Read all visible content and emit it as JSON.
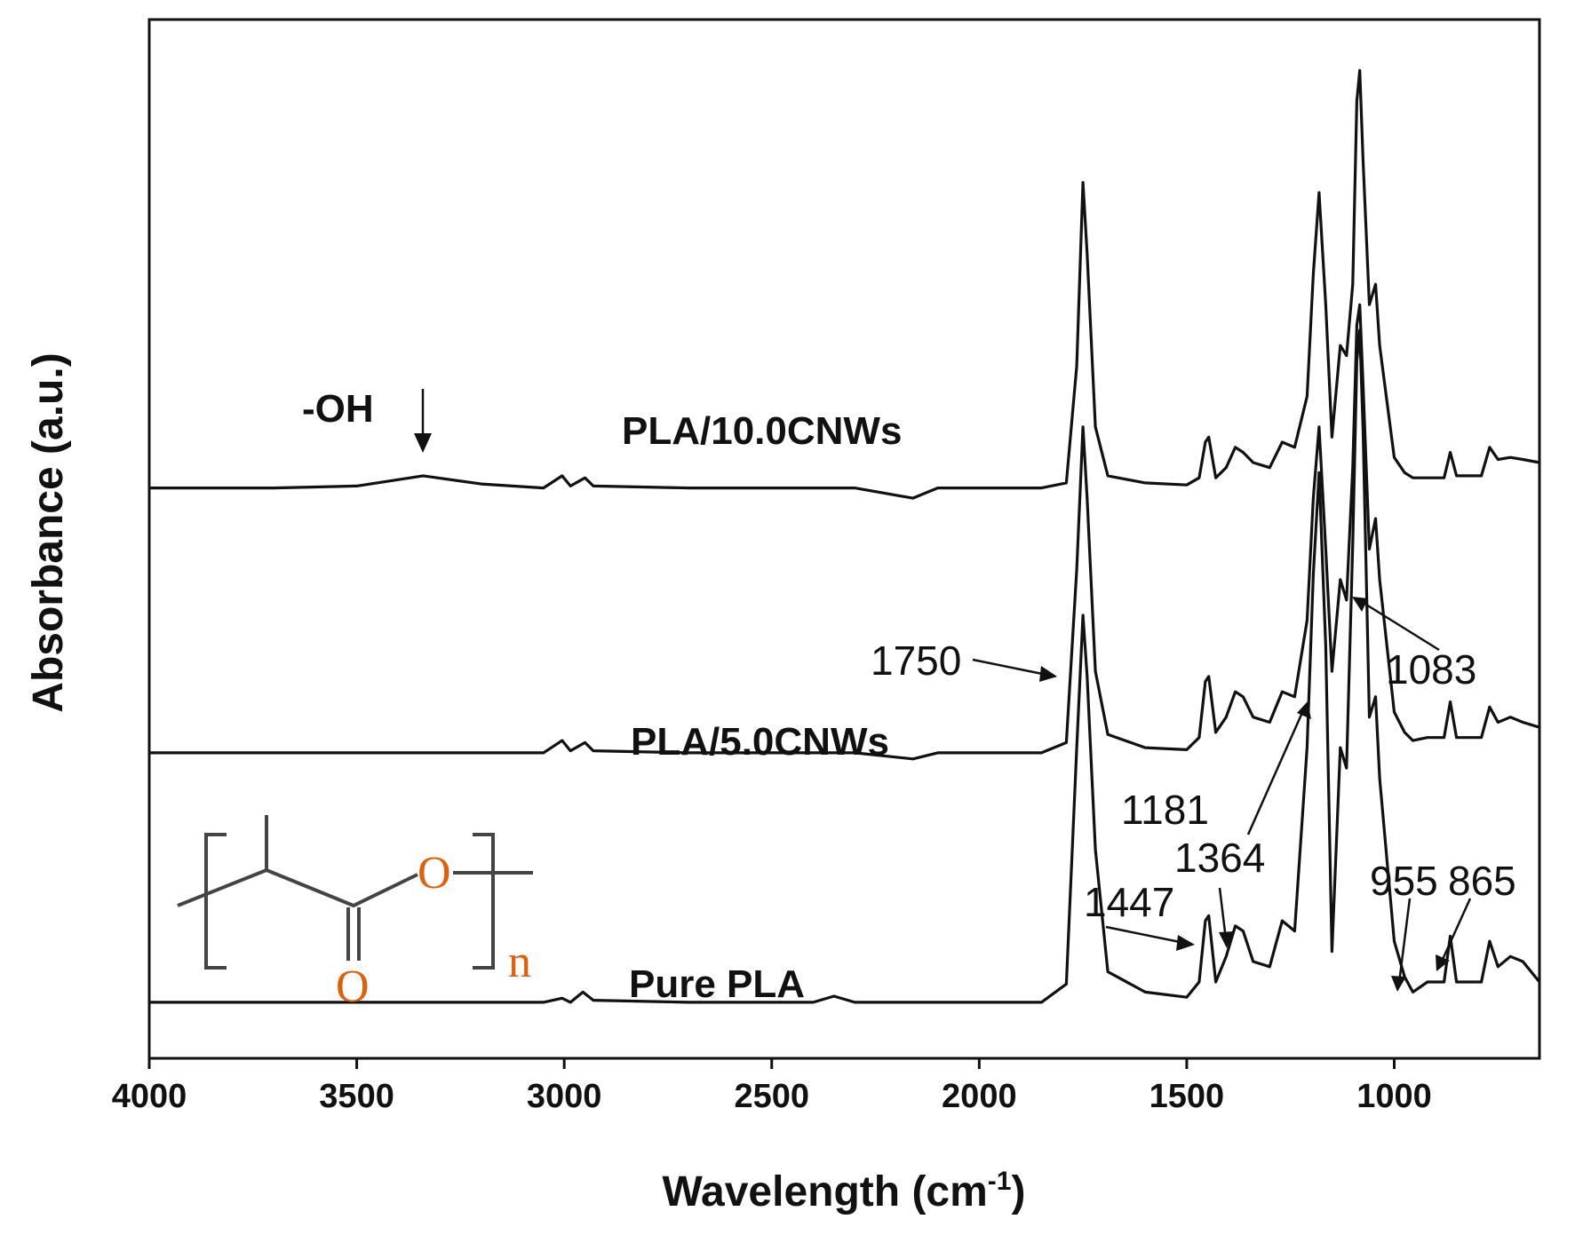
{
  "chart_data": {
    "type": "line",
    "xlabel": "Wavelength (cm",
    "xlabel_superscript": "-1",
    "xlabel_suffix": ")",
    "ylabel": "Absorbance (a.u.)",
    "xlim": [
      4000,
      650
    ],
    "x_reversed": true,
    "x_ticks": [
      4000,
      3500,
      3000,
      2500,
      2000,
      1500,
      1000
    ],
    "y_ticks_shown": false,
    "grid": false,
    "legend": "none",
    "series_colors": "#111111",
    "series": [
      {
        "name": "PLA/10.0CNWs",
        "baseline": 0.26,
        "points": [
          [
            4000,
            0.0
          ],
          [
            3700,
            0.0
          ],
          [
            3500,
            0.002
          ],
          [
            3340,
            0.012
          ],
          [
            3200,
            0.004
          ],
          [
            3050,
            0.0
          ],
          [
            3005,
            0.012
          ],
          [
            2985,
            0.002
          ],
          [
            2950,
            0.01
          ],
          [
            2930,
            0.002
          ],
          [
            2700,
            0.0
          ],
          [
            2300,
            0.0
          ],
          [
            2160,
            -0.01
          ],
          [
            2100,
            0.0
          ],
          [
            1850,
            0.0
          ],
          [
            1790,
            0.005
          ],
          [
            1765,
            0.12
          ],
          [
            1750,
            0.3
          ],
          [
            1740,
            0.23
          ],
          [
            1720,
            0.06
          ],
          [
            1690,
            0.012
          ],
          [
            1600,
            0.005
          ],
          [
            1500,
            0.003
          ],
          [
            1470,
            0.01
          ],
          [
            1455,
            0.045
          ],
          [
            1447,
            0.05
          ],
          [
            1430,
            0.01
          ],
          [
            1405,
            0.02
          ],
          [
            1383,
            0.04
          ],
          [
            1364,
            0.035
          ],
          [
            1340,
            0.025
          ],
          [
            1300,
            0.02
          ],
          [
            1270,
            0.045
          ],
          [
            1240,
            0.04
          ],
          [
            1210,
            0.09
          ],
          [
            1195,
            0.21
          ],
          [
            1181,
            0.29
          ],
          [
            1165,
            0.18
          ],
          [
            1150,
            0.05
          ],
          [
            1130,
            0.14
          ],
          [
            1115,
            0.13
          ],
          [
            1100,
            0.2
          ],
          [
            1090,
            0.38
          ],
          [
            1083,
            0.41
          ],
          [
            1075,
            0.32
          ],
          [
            1060,
            0.18
          ],
          [
            1045,
            0.2
          ],
          [
            1035,
            0.14
          ],
          [
            1000,
            0.03
          ],
          [
            975,
            0.015
          ],
          [
            955,
            0.01
          ],
          [
            920,
            0.01
          ],
          [
            880,
            0.01
          ],
          [
            865,
            0.035
          ],
          [
            850,
            0.012
          ],
          [
            810,
            0.012
          ],
          [
            790,
            0.012
          ],
          [
            770,
            0.04
          ],
          [
            750,
            0.028
          ],
          [
            720,
            0.03
          ],
          [
            690,
            0.028
          ],
          [
            650,
            0.025
          ]
        ]
      },
      {
        "name": "PLA/5.0CNWs",
        "baseline": 0.0,
        "points": [
          [
            4000,
            0.0
          ],
          [
            3700,
            0.0
          ],
          [
            3500,
            0.0
          ],
          [
            3200,
            0.0
          ],
          [
            3050,
            0.0
          ],
          [
            3005,
            0.012
          ],
          [
            2985,
            0.002
          ],
          [
            2950,
            0.01
          ],
          [
            2930,
            0.002
          ],
          [
            2700,
            0.0
          ],
          [
            2300,
            0.0
          ],
          [
            2160,
            -0.006
          ],
          [
            2100,
            0.0
          ],
          [
            1850,
            0.0
          ],
          [
            1790,
            0.01
          ],
          [
            1765,
            0.18
          ],
          [
            1750,
            0.32
          ],
          [
            1740,
            0.25
          ],
          [
            1720,
            0.08
          ],
          [
            1690,
            0.018
          ],
          [
            1600,
            0.005
          ],
          [
            1500,
            0.003
          ],
          [
            1470,
            0.015
          ],
          [
            1455,
            0.07
          ],
          [
            1447,
            0.075
          ],
          [
            1430,
            0.02
          ],
          [
            1405,
            0.035
          ],
          [
            1383,
            0.06
          ],
          [
            1364,
            0.055
          ],
          [
            1340,
            0.035
          ],
          [
            1300,
            0.03
          ],
          [
            1270,
            0.06
          ],
          [
            1240,
            0.055
          ],
          [
            1210,
            0.13
          ],
          [
            1195,
            0.25
          ],
          [
            1181,
            0.32
          ],
          [
            1165,
            0.2
          ],
          [
            1150,
            0.08
          ],
          [
            1130,
            0.17
          ],
          [
            1115,
            0.15
          ],
          [
            1100,
            0.28
          ],
          [
            1090,
            0.42
          ],
          [
            1083,
            0.44
          ],
          [
            1075,
            0.36
          ],
          [
            1060,
            0.2
          ],
          [
            1045,
            0.23
          ],
          [
            1035,
            0.17
          ],
          [
            1000,
            0.04
          ],
          [
            975,
            0.02
          ],
          [
            955,
            0.012
          ],
          [
            920,
            0.015
          ],
          [
            880,
            0.015
          ],
          [
            865,
            0.05
          ],
          [
            850,
            0.015
          ],
          [
            810,
            0.015
          ],
          [
            790,
            0.015
          ],
          [
            770,
            0.045
          ],
          [
            750,
            0.03
          ],
          [
            720,
            0.035
          ],
          [
            690,
            0.03
          ],
          [
            650,
            0.025
          ]
        ]
      },
      {
        "name": "Pure PLA",
        "baseline": -0.245,
        "points": [
          [
            4000,
            0.0
          ],
          [
            3700,
            0.0
          ],
          [
            3500,
            0.0
          ],
          [
            3200,
            0.0
          ],
          [
            3050,
            0.0
          ],
          [
            3005,
            0.004
          ],
          [
            2985,
            0.0
          ],
          [
            2955,
            0.01
          ],
          [
            2930,
            0.002
          ],
          [
            2700,
            0.0
          ],
          [
            2400,
            0.0
          ],
          [
            2350,
            0.006
          ],
          [
            2300,
            0.0
          ],
          [
            2000,
            0.0
          ],
          [
            1850,
            0.0
          ],
          [
            1790,
            0.018
          ],
          [
            1765,
            0.25
          ],
          [
            1750,
            0.38
          ],
          [
            1740,
            0.32
          ],
          [
            1720,
            0.15
          ],
          [
            1690,
            0.03
          ],
          [
            1600,
            0.01
          ],
          [
            1500,
            0.005
          ],
          [
            1470,
            0.02
          ],
          [
            1455,
            0.08
          ],
          [
            1447,
            0.085
          ],
          [
            1430,
            0.02
          ],
          [
            1405,
            0.045
          ],
          [
            1383,
            0.075
          ],
          [
            1364,
            0.07
          ],
          [
            1340,
            0.04
          ],
          [
            1300,
            0.035
          ],
          [
            1270,
            0.08
          ],
          [
            1240,
            0.07
          ],
          [
            1210,
            0.25
          ],
          [
            1195,
            0.42
          ],
          [
            1181,
            0.52
          ],
          [
            1165,
            0.35
          ],
          [
            1150,
            0.05
          ],
          [
            1130,
            0.25
          ],
          [
            1115,
            0.23
          ],
          [
            1100,
            0.45
          ],
          [
            1090,
            0.63
          ],
          [
            1083,
            0.66
          ],
          [
            1075,
            0.56
          ],
          [
            1060,
            0.28
          ],
          [
            1045,
            0.3
          ],
          [
            1035,
            0.22
          ],
          [
            1000,
            0.06
          ],
          [
            975,
            0.025
          ],
          [
            955,
            0.01
          ],
          [
            920,
            0.02
          ],
          [
            880,
            0.02
          ],
          [
            865,
            0.065
          ],
          [
            850,
            0.02
          ],
          [
            810,
            0.02
          ],
          [
            790,
            0.02
          ],
          [
            770,
            0.06
          ],
          [
            750,
            0.035
          ],
          [
            720,
            0.045
          ],
          [
            690,
            0.04
          ],
          [
            650,
            0.02
          ]
        ]
      }
    ],
    "annotations": [
      {
        "text": "-OH",
        "x": 3340,
        "series": "PLA/10.0CNWs"
      },
      {
        "text": "1750",
        "x": 1750,
        "series": "PLA/5.0CNWs"
      },
      {
        "text": "1083",
        "x": 1083,
        "series": "PLA/5.0CNWs"
      },
      {
        "text": "1181",
        "x": 1181,
        "series": "Pure PLA"
      },
      {
        "text": "1364",
        "x": 1364,
        "series": "Pure PLA"
      },
      {
        "text": "1447",
        "x": 1447,
        "series": "Pure PLA"
      },
      {
        "text": "955",
        "x": 955,
        "series": "Pure PLA"
      },
      {
        "text": "865",
        "x": 865,
        "series": "Pure PLA"
      }
    ],
    "structure_inset": {
      "atoms": [
        "O",
        "O"
      ],
      "subscript": "n"
    }
  }
}
